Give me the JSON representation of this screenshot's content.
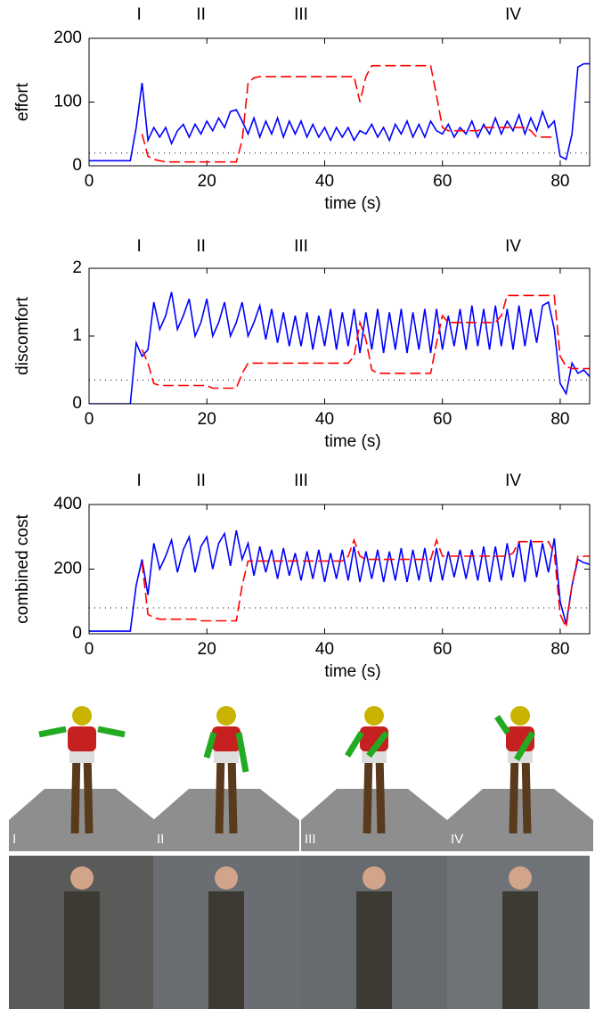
{
  "chart_data": [
    {
      "type": "line",
      "ylabel": "effort",
      "xlabel": "time (s)",
      "xlim": [
        0,
        85
      ],
      "xticks": [
        0,
        20,
        40,
        60,
        80
      ],
      "ylim": [
        0,
        200
      ],
      "yticks": [
        0,
        100,
        200
      ],
      "threshold": 20,
      "annotations": [
        {
          "text": "I",
          "x": 8.5
        },
        {
          "text": "II",
          "x": 19
        },
        {
          "text": "III",
          "x": 36
        },
        {
          "text": "IV",
          "x": 72
        }
      ],
      "x": [
        0,
        1,
        2,
        3,
        4,
        5,
        6,
        7,
        8,
        9,
        10,
        11,
        12,
        13,
        14,
        15,
        16,
        17,
        18,
        19,
        20,
        21,
        22,
        23,
        24,
        25,
        26,
        27,
        28,
        29,
        30,
        31,
        32,
        33,
        34,
        35,
        36,
        37,
        38,
        39,
        40,
        41,
        42,
        43,
        44,
        45,
        46,
        47,
        48,
        49,
        50,
        51,
        52,
        53,
        54,
        55,
        56,
        57,
        58,
        59,
        60,
        61,
        62,
        63,
        64,
        65,
        66,
        67,
        68,
        69,
        70,
        71,
        72,
        73,
        74,
        75,
        76,
        77,
        78,
        79,
        80,
        81,
        82,
        83,
        84,
        85
      ],
      "series": [
        {
          "color": "#0000ff",
          "style": "solid",
          "values": [
            8,
            8,
            8,
            8,
            8,
            8,
            8,
            8,
            60,
            130,
            40,
            60,
            45,
            60,
            35,
            55,
            65,
            45,
            65,
            50,
            70,
            55,
            75,
            60,
            85,
            88,
            70,
            50,
            75,
            45,
            70,
            50,
            75,
            45,
            70,
            50,
            70,
            45,
            65,
            45,
            60,
            40,
            60,
            45,
            60,
            40,
            55,
            50,
            65,
            45,
            60,
            40,
            65,
            50,
            70,
            45,
            65,
            45,
            70,
            55,
            50,
            65,
            45,
            60,
            50,
            70,
            45,
            65,
            50,
            75,
            50,
            70,
            55,
            80,
            50,
            75,
            55,
            85,
            60,
            70,
            15,
            10,
            50,
            155,
            160,
            160
          ]
        },
        {
          "color": "#ff0000",
          "style": "dashed",
          "values": [
            null,
            null,
            null,
            null,
            null,
            null,
            null,
            null,
            null,
            50,
            15,
            10,
            8,
            6,
            6,
            6,
            6,
            6,
            6,
            6,
            6,
            6,
            6,
            6,
            6,
            6,
            40,
            130,
            138,
            140,
            140,
            140,
            140,
            140,
            140,
            140,
            140,
            140,
            140,
            140,
            140,
            140,
            140,
            140,
            140,
            140,
            100,
            140,
            157,
            157,
            157,
            157,
            157,
            157,
            157,
            157,
            157,
            157,
            157,
            110,
            60,
            55,
            55,
            55,
            55,
            55,
            55,
            60,
            60,
            60,
            60,
            60,
            60,
            60,
            60,
            55,
            45,
            45,
            45,
            45,
            null,
            null,
            null,
            null,
            null,
            null
          ]
        }
      ]
    },
    {
      "type": "line",
      "ylabel": "discomfort",
      "xlabel": "time (s)",
      "xlim": [
        0,
        85
      ],
      "xticks": [
        0,
        20,
        40,
        60,
        80
      ],
      "ylim": [
        0,
        2
      ],
      "yticks": [
        0,
        1,
        2
      ],
      "threshold": 0.35,
      "annotations": [
        {
          "text": "I",
          "x": 8.5
        },
        {
          "text": "II",
          "x": 19
        },
        {
          "text": "III",
          "x": 36
        },
        {
          "text": "IV",
          "x": 72
        }
      ],
      "x": [
        0,
        1,
        2,
        3,
        4,
        5,
        6,
        7,
        8,
        9,
        10,
        11,
        12,
        13,
        14,
        15,
        16,
        17,
        18,
        19,
        20,
        21,
        22,
        23,
        24,
        25,
        26,
        27,
        28,
        29,
        30,
        31,
        32,
        33,
        34,
        35,
        36,
        37,
        38,
        39,
        40,
        41,
        42,
        43,
        44,
        45,
        46,
        47,
        48,
        49,
        50,
        51,
        52,
        53,
        54,
        55,
        56,
        57,
        58,
        59,
        60,
        61,
        62,
        63,
        64,
        65,
        66,
        67,
        68,
        69,
        70,
        71,
        72,
        73,
        74,
        75,
        76,
        77,
        78,
        79,
        80,
        81,
        82,
        83,
        84,
        85
      ],
      "series": [
        {
          "color": "#0000ff",
          "style": "solid",
          "values": [
            0,
            0,
            0,
            0,
            0,
            0,
            0,
            0,
            0.9,
            0.7,
            0.8,
            1.5,
            1.1,
            1.3,
            1.65,
            1.1,
            1.3,
            1.55,
            1.0,
            1.2,
            1.55,
            1.0,
            1.2,
            1.5,
            1.0,
            1.2,
            1.5,
            1.0,
            1.2,
            1.45,
            0.95,
            1.4,
            0.9,
            1.35,
            0.85,
            1.3,
            0.85,
            1.35,
            0.8,
            1.3,
            0.85,
            1.4,
            0.8,
            1.35,
            0.85,
            1.4,
            0.75,
            1.35,
            0.8,
            1.4,
            0.75,
            1.35,
            0.8,
            1.4,
            0.75,
            1.35,
            0.8,
            1.4,
            0.75,
            1.4,
            0.8,
            1.3,
            0.85,
            1.4,
            0.8,
            1.45,
            0.85,
            1.4,
            0.8,
            1.45,
            0.85,
            1.4,
            0.8,
            1.45,
            0.85,
            1.4,
            0.9,
            1.45,
            1.5,
            1.1,
            0.3,
            0.15,
            0.6,
            0.45,
            0.5,
            0.4
          ]
        },
        {
          "color": "#ff0000",
          "style": "dashed",
          "values": [
            null,
            null,
            null,
            null,
            null,
            null,
            null,
            null,
            null,
            0.8,
            0.6,
            0.3,
            0.27,
            0.27,
            0.27,
            0.27,
            0.27,
            0.27,
            0.27,
            0.27,
            0.27,
            0.23,
            0.23,
            0.23,
            0.23,
            0.23,
            0.45,
            0.6,
            0.6,
            0.6,
            0.6,
            0.6,
            0.6,
            0.6,
            0.6,
            0.6,
            0.6,
            0.6,
            0.6,
            0.6,
            0.6,
            0.6,
            0.6,
            0.6,
            0.6,
            0.7,
            1.2,
            0.95,
            0.5,
            0.45,
            0.45,
            0.45,
            0.45,
            0.45,
            0.45,
            0.45,
            0.45,
            0.45,
            0.45,
            0.9,
            1.3,
            1.2,
            1.2,
            1.2,
            1.2,
            1.2,
            1.2,
            1.2,
            1.2,
            1.2,
            1.3,
            1.6,
            1.6,
            1.6,
            1.6,
            1.6,
            1.6,
            1.6,
            1.6,
            1.6,
            0.7,
            0.55,
            0.52,
            0.52,
            0.52,
            0.52
          ]
        }
      ]
    },
    {
      "type": "line",
      "ylabel": "combined cost",
      "xlabel": "time (s)",
      "xlim": [
        0,
        85
      ],
      "xticks": [
        0,
        20,
        40,
        60,
        80
      ],
      "ylim": [
        0,
        400
      ],
      "yticks": [
        0,
        200,
        400
      ],
      "threshold": 80,
      "annotations": [
        {
          "text": "I",
          "x": 8.5
        },
        {
          "text": "II",
          "x": 19
        },
        {
          "text": "III",
          "x": 36
        },
        {
          "text": "IV",
          "x": 72
        }
      ],
      "x": [
        0,
        1,
        2,
        3,
        4,
        5,
        6,
        7,
        8,
        9,
        10,
        11,
        12,
        13,
        14,
        15,
        16,
        17,
        18,
        19,
        20,
        21,
        22,
        23,
        24,
        25,
        26,
        27,
        28,
        29,
        30,
        31,
        32,
        33,
        34,
        35,
        36,
        37,
        38,
        39,
        40,
        41,
        42,
        43,
        44,
        45,
        46,
        47,
        48,
        49,
        50,
        51,
        52,
        53,
        54,
        55,
        56,
        57,
        58,
        59,
        60,
        61,
        62,
        63,
        64,
        65,
        66,
        67,
        68,
        69,
        70,
        71,
        72,
        73,
        74,
        75,
        76,
        77,
        78,
        79,
        80,
        81,
        82,
        83,
        84,
        85
      ],
      "series": [
        {
          "color": "#0000ff",
          "style": "solid",
          "values": [
            8,
            8,
            8,
            8,
            8,
            8,
            8,
            8,
            150,
            230,
            120,
            280,
            200,
            240,
            290,
            190,
            260,
            300,
            190,
            270,
            300,
            200,
            280,
            310,
            210,
            320,
            230,
            280,
            180,
            270,
            190,
            260,
            170,
            265,
            180,
            250,
            165,
            255,
            170,
            260,
            160,
            250,
            170,
            260,
            165,
            270,
            160,
            255,
            170,
            260,
            160,
            255,
            165,
            265,
            160,
            260,
            165,
            265,
            160,
            265,
            165,
            255,
            175,
            260,
            170,
            260,
            165,
            270,
            160,
            270,
            165,
            280,
            175,
            285,
            160,
            290,
            175,
            280,
            190,
            295,
            100,
            30,
            150,
            230,
            220,
            215
          ]
        },
        {
          "color": "#ff0000",
          "style": "dashed",
          "values": [
            null,
            null,
            null,
            null,
            null,
            null,
            null,
            null,
            null,
            220,
            60,
            50,
            45,
            45,
            45,
            45,
            45,
            45,
            45,
            40,
            40,
            40,
            40,
            40,
            40,
            40,
            150,
            225,
            225,
            225,
            225,
            225,
            225,
            225,
            225,
            225,
            225,
            225,
            225,
            225,
            225,
            225,
            225,
            225,
            240,
            290,
            240,
            230,
            230,
            230,
            230,
            230,
            230,
            230,
            230,
            230,
            230,
            230,
            230,
            290,
            240,
            240,
            240,
            240,
            240,
            240,
            240,
            240,
            240,
            240,
            240,
            240,
            250,
            285,
            285,
            285,
            285,
            285,
            285,
            250,
            60,
            20,
            150,
            240,
            240,
            240
          ]
        }
      ]
    }
  ],
  "panels": [
    "I",
    "II",
    "III",
    "IV"
  ]
}
